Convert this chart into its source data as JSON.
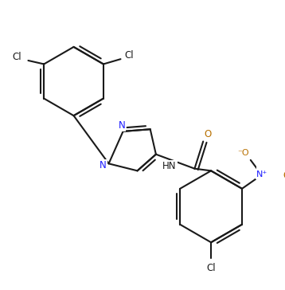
{
  "bg": "#ffffff",
  "lc": "#1a1a1a",
  "nc": "#1a1aff",
  "oc": "#b87000",
  "lw": 1.5,
  "figsize": [
    3.58,
    3.64
  ],
  "dpi": 100,
  "xlim": [
    0,
    358
  ],
  "ylim": [
    0,
    364
  ]
}
